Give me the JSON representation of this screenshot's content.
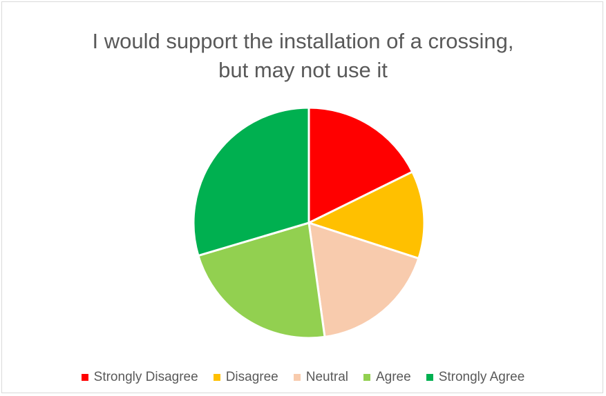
{
  "chart_data": {
    "type": "pie",
    "title_lines": [
      "I would support the installation of a crossing,",
      "but may not use it"
    ],
    "categories": [
      "Strongly Disagree",
      "Disagree",
      "Neutral",
      "Agree",
      "Strongly Agree"
    ],
    "values": [
      17.7,
      12.3,
      17.8,
      22.6,
      29.6
    ],
    "colors": [
      "#ff0000",
      "#ffc000",
      "#f8cbad",
      "#92d050",
      "#00b050"
    ],
    "legend_position": "bottom",
    "start_angle_deg": 0,
    "direction": "clockwise"
  }
}
